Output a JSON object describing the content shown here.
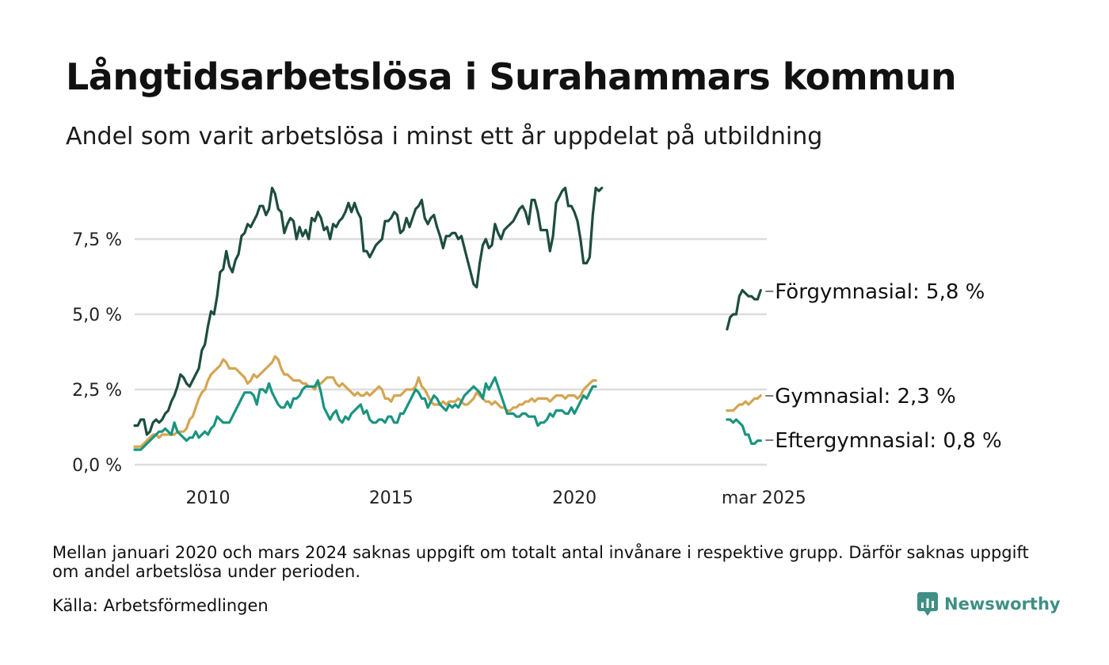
{
  "title": "Långtidsarbetslösa i Surahammars kommun",
  "subtitle": "Andel som varit arbetslösa i minst ett år uppdelat på utbildning",
  "note": "Mellan januari 2020 och mars 2024 saknas uppgift om totalt antal invånare i respektive grupp. Därför saknas uppgift om andel arbetslösa under perioden.",
  "source": "Källa: Arbetsförmedlingen",
  "brand": "Newsworthy",
  "colors": {
    "brand": "#3f8f84",
    "grid": "#dddddd"
  },
  "chart_data": {
    "type": "line",
    "x_ticks": [
      "2010",
      "2015",
      "2020",
      "mar 2025"
    ],
    "y_ticks": [
      "0,0 %",
      "2,5 %",
      "5,0 %",
      "7,5 %"
    ],
    "y_tick_values": [
      0,
      2.5,
      5.0,
      7.5
    ],
    "ylim": [
      0,
      9.5
    ],
    "grid": true,
    "series": [
      {
        "name": "Förgymnasial",
        "end_label": "Förgymnasial: 5,8 %",
        "color": "#1e4d40",
        "segments": [
          {
            "start": "2008-01",
            "values": [
              1.3,
              1.3,
              1.5,
              1.5,
              1.0,
              1.1,
              1.4,
              1.5,
              1.4,
              1.5,
              1.7,
              1.8,
              2.1,
              2.3,
              2.6,
              3.0,
              2.9,
              2.7,
              2.6,
              2.8,
              3.0,
              3.2,
              3.8,
              4.0,
              4.6,
              5.1,
              5.0,
              5.6,
              6.4,
              6.5,
              7.1,
              6.6,
              6.4,
              6.8,
              7.0,
              7.6,
              7.7,
              8.0,
              7.9,
              8.1,
              8.3,
              8.6,
              8.6,
              8.3,
              8.5,
              9.2,
              9.0,
              8.5,
              8.4,
              7.7,
              8.0,
              8.2,
              8.1,
              7.5,
              7.9,
              7.6,
              7.8,
              7.5,
              8.2,
              8.1,
              8.4,
              8.2,
              7.8,
              7.9,
              7.5,
              8.0,
              7.9,
              8.1,
              8.2,
              8.4,
              8.7,
              8.4,
              8.7,
              8.4,
              8.2,
              7.1,
              7.1,
              6.9,
              7.1,
              7.3,
              7.4,
              7.5,
              8.1,
              8.1,
              8.2,
              8.4,
              8.3,
              7.7,
              7.8,
              8.2,
              7.9,
              8.2,
              8.5,
              8.6,
              8.8,
              8.2,
              8.0,
              8.2,
              8.3,
              7.9,
              7.6,
              7.2,
              7.6,
              7.6,
              7.7,
              7.7,
              7.5,
              7.6,
              7.2,
              6.8,
              6.4,
              6.0,
              5.9,
              6.7,
              7.3,
              7.5,
              7.2,
              7.3,
              8.0,
              7.7,
              7.5,
              7.8,
              7.9,
              8.0,
              8.1,
              8.3,
              8.5,
              8.6,
              8.4,
              8.0,
              8.8,
              8.8,
              8.4,
              7.8,
              7.8,
              7.8,
              7.1,
              7.6,
              8.7,
              8.9,
              9.1,
              9.2,
              8.6,
              8.6,
              8.4,
              8.1,
              7.5,
              6.7,
              6.7,
              6.9,
              8.3,
              9.2,
              9.1,
              9.2
            ]
          },
          {
            "start": "2024-03",
            "values": [
              4.5,
              4.9,
              5.0,
              5.0,
              5.6,
              5.8,
              5.7,
              5.6,
              5.6,
              5.5,
              5.5,
              5.8
            ]
          }
        ]
      },
      {
        "name": "Gymnasial",
        "end_label": "Gymnasial: 2,3 %",
        "color": "#d4a552",
        "segments": [
          {
            "start": "2008-01",
            "values": [
              0.6,
              0.6,
              0.6,
              0.7,
              0.8,
              0.9,
              1.0,
              1.0,
              0.9,
              1.0,
              1.0,
              1.0,
              1.0,
              1.0,
              1.1,
              1.1,
              1.1,
              1.2,
              1.5,
              1.6,
              1.9,
              2.2,
              2.4,
              2.5,
              2.8,
              3.0,
              3.1,
              3.2,
              3.3,
              3.5,
              3.4,
              3.2,
              3.2,
              3.2,
              3.1,
              3.0,
              2.9,
              2.7,
              2.8,
              3.0,
              2.9,
              3.0,
              3.1,
              3.2,
              3.3,
              3.4,
              3.6,
              3.5,
              3.2,
              3.0,
              3.0,
              2.9,
              2.8,
              2.8,
              2.8,
              2.7,
              2.7,
              2.6,
              2.6,
              2.5,
              2.7,
              2.7,
              2.8,
              2.9,
              2.9,
              2.9,
              2.7,
              2.6,
              2.7,
              2.6,
              2.5,
              2.4,
              2.3,
              2.4,
              2.3,
              2.3,
              2.4,
              2.3,
              2.4,
              2.5,
              2.6,
              2.5,
              2.2,
              2.2,
              2.1,
              2.3,
              2.3,
              2.3,
              2.4,
              2.5,
              2.5,
              2.5,
              2.6,
              2.9,
              2.6,
              2.5,
              2.3,
              2.1,
              2.0,
              2.0,
              2.0,
              2.1,
              2.0,
              2.1,
              2.1,
              2.1,
              2.2,
              2.1,
              2.0,
              2.0,
              2.1,
              2.2,
              2.4,
              2.3,
              2.2,
              2.1,
              2.1,
              2.0,
              2.1,
              2.0,
              1.9,
              1.9,
              1.8,
              1.8,
              1.9,
              1.9,
              2.0,
              2.0,
              2.1,
              2.1,
              2.2,
              2.1,
              2.2,
              2.2,
              2.2,
              2.2,
              2.1,
              2.2,
              2.3,
              2.3,
              2.3,
              2.2,
              2.3,
              2.3,
              2.3,
              2.2,
              2.3,
              2.5,
              2.6,
              2.7,
              2.8,
              2.8
            ]
          },
          {
            "start": "2024-03",
            "values": [
              1.8,
              1.8,
              1.8,
              1.9,
              2.0,
              2.0,
              2.1,
              2.0,
              2.1,
              2.2,
              2.2,
              2.3
            ]
          }
        ]
      },
      {
        "name": "Eftergymnasial",
        "end_label": "Eftergymnasial: 0,8 %",
        "color": "#1a9480",
        "segments": [
          {
            "start": "2008-01",
            "values": [
              0.5,
              0.5,
              0.5,
              0.6,
              0.7,
              0.8,
              0.9,
              1.0,
              1.1,
              1.1,
              1.2,
              1.1,
              1.0,
              1.4,
              1.1,
              1.0,
              0.9,
              0.8,
              0.9,
              0.9,
              1.1,
              0.9,
              1.0,
              1.1,
              1.0,
              1.2,
              1.3,
              1.6,
              1.5,
              1.4,
              1.4,
              1.4,
              1.6,
              1.8,
              2.0,
              2.2,
              2.4,
              2.4,
              2.4,
              2.3,
              2.0,
              2.5,
              2.5,
              2.4,
              2.7,
              2.4,
              2.2,
              2.0,
              1.9,
              1.9,
              2.1,
              1.9,
              2.2,
              2.2,
              2.3,
              2.5,
              2.6,
              2.6,
              2.6,
              2.6,
              2.8,
              2.4,
              1.9,
              1.7,
              1.5,
              1.7,
              1.8,
              1.5,
              1.4,
              1.6,
              1.5,
              1.7,
              1.8,
              1.9,
              2.0,
              1.7,
              1.8,
              1.5,
              1.4,
              1.4,
              1.5,
              1.5,
              1.4,
              1.6,
              1.6,
              1.4,
              1.4,
              1.7,
              1.7,
              1.9,
              2.1,
              2.3,
              2.5,
              2.4,
              2.2,
              2.2,
              1.9,
              2.1,
              2.3,
              2.2,
              2.0,
              1.9,
              1.8,
              2.0,
              1.9,
              2.0,
              1.9,
              2.1,
              2.3,
              2.4,
              2.5,
              2.6,
              2.5,
              2.4,
              2.2,
              2.7,
              2.5,
              2.7,
              2.9,
              2.6,
              2.3,
              2.0,
              1.7,
              1.7,
              1.7,
              1.6,
              1.6,
              1.7,
              1.7,
              1.6,
              1.6,
              1.6,
              1.3,
              1.4,
              1.4,
              1.5,
              1.7,
              1.6,
              1.8,
              1.8,
              1.8,
              1.7,
              1.7,
              1.9,
              1.7,
              1.9,
              2.1,
              2.3,
              2.2,
              2.4,
              2.6,
              2.6
            ]
          },
          {
            "start": "2024-03",
            "values": [
              1.5,
              1.5,
              1.4,
              1.5,
              1.4,
              1.3,
              1.0,
              1.0,
              0.7,
              0.7,
              0.8,
              0.8
            ]
          }
        ]
      }
    ]
  }
}
